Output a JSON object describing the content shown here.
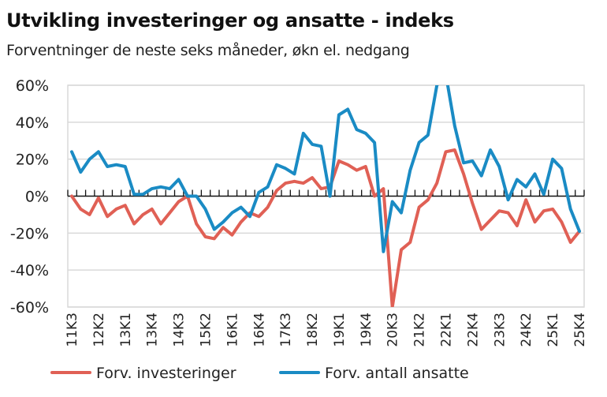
{
  "chart_data": {
    "type": "line",
    "title": "Utvikling investeringer og ansatte - indeks",
    "subtitle": "Forventninger de neste seks måneder, økn el. nedgang",
    "xlabel": "",
    "ylabel": "",
    "ylim": [
      -60,
      60
    ],
    "yticks": [
      60,
      40,
      20,
      0,
      -20,
      -40,
      -60
    ],
    "ytick_labels": [
      "60%",
      "40%",
      "20%",
      "0%",
      "-20%",
      "-40%",
      "-60%"
    ],
    "grid": true,
    "legend_position": "bottom",
    "x": [
      "11K3",
      "11K4",
      "12K1",
      "12K2",
      "12K3",
      "12K4",
      "13K1",
      "13K2",
      "13K3",
      "13K4",
      "14K1",
      "14K2",
      "14K3",
      "14K4",
      "15K1",
      "15K2",
      "15K3",
      "15K4",
      "16K1",
      "16K2",
      "16K3",
      "16K4",
      "17K1",
      "17K2",
      "17K3",
      "17K4",
      "18K1",
      "18K2",
      "18K3",
      "18K4",
      "19K1",
      "19K2",
      "19K3",
      "19K4",
      "20K1",
      "20K2",
      "20K3",
      "20K4",
      "21K1",
      "21K2",
      "21K3",
      "21K4",
      "22K1",
      "22K2",
      "22K3",
      "22K4",
      "23K1",
      "23K2",
      "23K3",
      "23K4",
      "24K1",
      "24K2",
      "24K3",
      "24K4",
      "25K1",
      "25K2",
      "25K3",
      "25K4"
    ],
    "tick_labels": [
      "11K3",
      "12K2",
      "13K1",
      "13K4",
      "14K3",
      "15K2",
      "16K1",
      "16K4",
      "17K3",
      "18K2",
      "19K1",
      "19K4",
      "20K3",
      "21K2",
      "22K1",
      "22K4",
      "23K3",
      "24K2",
      "25K1",
      "25K4"
    ],
    "series": [
      {
        "name": "Forv. investeringer",
        "color": "#e06055",
        "values": [
          0,
          -7,
          -10,
          -1,
          -11,
          -7,
          -5,
          -15,
          -10,
          -7,
          -15,
          -9,
          -3,
          0,
          -15,
          -22,
          -23,
          -17,
          -21,
          -14,
          -9,
          -11,
          -6,
          3,
          7,
          8,
          7,
          10,
          4,
          5,
          19,
          17,
          14,
          16,
          0,
          4,
          -60,
          -29,
          -25,
          -6,
          -2,
          7,
          24,
          25,
          12,
          -4,
          -18,
          -13,
          -8,
          -9,
          -16,
          -2,
          -14,
          -8,
          -7,
          -14,
          -25,
          -19
        ]
      },
      {
        "name": "Forv. antall ansatte",
        "color": "#1a8bc4",
        "values": [
          24,
          13,
          20,
          24,
          16,
          17,
          16,
          1,
          1,
          4,
          5,
          4,
          9,
          0,
          0,
          -7,
          -18,
          -14,
          -9,
          -6,
          -11,
          2,
          5,
          17,
          15,
          12,
          34,
          28,
          27,
          0,
          44,
          47,
          36,
          34,
          29,
          -30,
          -3,
          -9,
          14,
          29,
          33,
          60,
          66,
          38,
          18,
          19,
          11,
          25,
          16,
          -2,
          9,
          5,
          12,
          1,
          20,
          15,
          -7,
          -19
        ]
      }
    ]
  }
}
